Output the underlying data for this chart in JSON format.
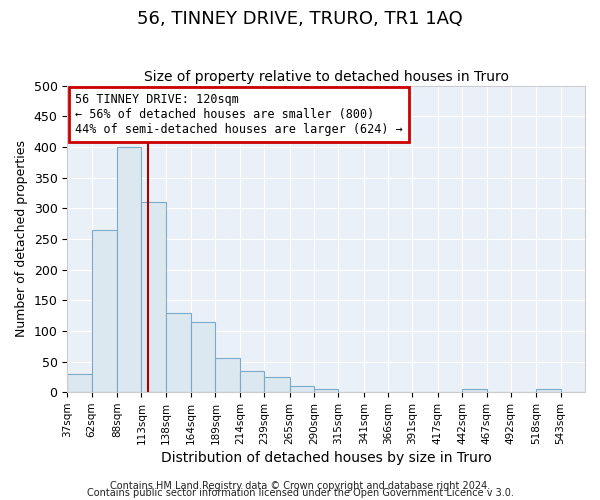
{
  "title": "56, TINNEY DRIVE, TRURO, TR1 1AQ",
  "subtitle": "Size of property relative to detached houses in Truro",
  "xlabel": "Distribution of detached houses by size in Truro",
  "ylabel": "Number of detached properties",
  "footnote1": "Contains HM Land Registry data © Crown copyright and database right 2024.",
  "footnote2": "Contains public sector information licensed under the Open Government Licence v 3.0.",
  "bar_edges": [
    37,
    62,
    88,
    113,
    138,
    164,
    189,
    214,
    239,
    265,
    290,
    315,
    341,
    366,
    391,
    417,
    442,
    467,
    492,
    518,
    543
  ],
  "bar_heights": [
    30,
    265,
    400,
    310,
    130,
    115,
    55,
    35,
    25,
    10,
    5,
    0,
    0,
    0,
    0,
    0,
    5,
    0,
    0,
    5,
    0
  ],
  "bar_color": "#dce8f0",
  "bar_edgecolor": "#7aaac8",
  "vline_x": 120,
  "vline_color": "#aa0000",
  "ylim": [
    0,
    500
  ],
  "xlim": [
    37,
    568
  ],
  "annotation_text_line1": "56 TINNEY DRIVE: 120sqm",
  "annotation_text_line2": "← 56% of detached houses are smaller (800)",
  "annotation_text_line3": "44% of semi-detached houses are larger (624) →",
  "box_facecolor": "white",
  "box_edgecolor": "#cc0000",
  "title_fontsize": 13,
  "subtitle_fontsize": 10,
  "ylabel_fontsize": 9,
  "xlabel_fontsize": 10,
  "tick_fontsize": 7.5,
  "annot_fontsize": 8.5,
  "tick_labels": [
    "37sqm",
    "62sqm",
    "88sqm",
    "113sqm",
    "138sqm",
    "164sqm",
    "189sqm",
    "214sqm",
    "239sqm",
    "265sqm",
    "290sqm",
    "315sqm",
    "341sqm",
    "366sqm",
    "391sqm",
    "417sqm",
    "442sqm",
    "467sqm",
    "492sqm",
    "518sqm",
    "543sqm"
  ],
  "figure_facecolor": "#ffffff",
  "plot_facecolor": "#eaf0f8",
  "grid_color": "#ffffff",
  "footnote_fontsize": 7
}
